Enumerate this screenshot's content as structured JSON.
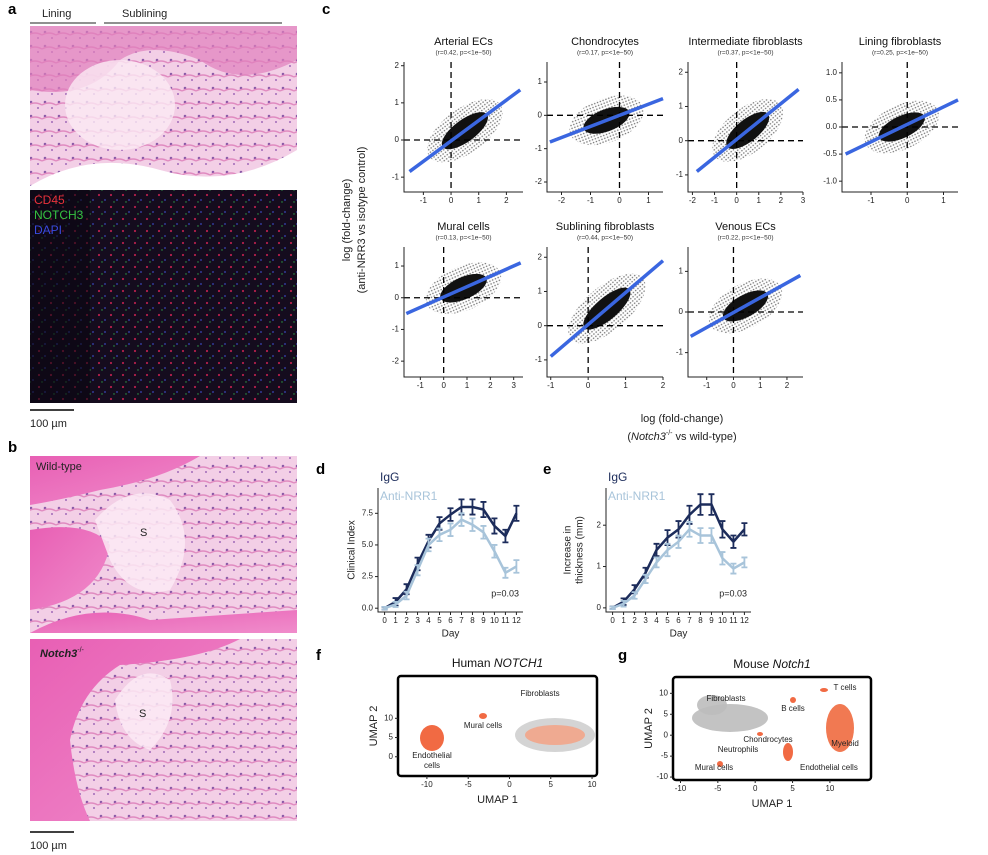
{
  "panels": {
    "a": {
      "label": "a",
      "lining": "Lining",
      "sublining": "Sublining",
      "stains": [
        "CD45",
        "NOTCH3",
        "DAPI"
      ],
      "scale": "100 µm"
    },
    "b": {
      "label": "b",
      "top": "Wild-type",
      "bottom_gene": "Notch3",
      "bottom_sup": "-/-",
      "s_top": "S",
      "s_bottom": "S",
      "scale": "100 µm"
    },
    "c": {
      "label": "c",
      "y_label": [
        "log (fold-change)",
        "(anti-NRR3 vs isotype control)"
      ],
      "x_label": "log (fold-change)",
      "x_label2": [
        "(",
        "Notch3",
        "-/-",
        " vs wild-type)"
      ]
    },
    "d": {
      "label": "d"
    },
    "e": {
      "label": "e"
    },
    "f": {
      "label": "f"
    },
    "g": {
      "label": "g"
    }
  },
  "chart_data": [
    {
      "type": "scatter",
      "title": "Arterial ECs",
      "subtitle": "(r=0.42, p=<1e−50)",
      "xlim": [
        -1.7,
        2.6
      ],
      "ylim": [
        -1.4,
        2.1
      ],
      "xticks": [
        -1,
        0,
        1,
        2
      ],
      "yticks": [
        -1,
        0,
        1,
        2
      ],
      "fit_x": [
        -1.5,
        2.5
      ],
      "fit_y": [
        -0.85,
        1.35
      ],
      "color": "#3a66e0"
    },
    {
      "type": "scatter",
      "title": "Chondrocytes",
      "subtitle": "(r=0.17, p=<1e−50)",
      "xlim": [
        -2.5,
        1.5
      ],
      "ylim": [
        -2.3,
        1.6
      ],
      "xticks": [
        -2,
        -1,
        0,
        1
      ],
      "yticks": [
        -2,
        -1,
        0,
        1
      ],
      "fit_x": [
        -2.4,
        1.5
      ],
      "fit_y": [
        -0.8,
        0.5
      ],
      "color": "#3a66e0"
    },
    {
      "type": "scatter",
      "title": "Intermediate fibroblasts",
      "subtitle": "(r=0.37, p=<1e−50)",
      "xlim": [
        -2.2,
        3
      ],
      "ylim": [
        -1.5,
        2.3
      ],
      "xticks": [
        -2,
        -1,
        0,
        1,
        2,
        3
      ],
      "yticks": [
        -1,
        0,
        1,
        2
      ],
      "fit_x": [
        -1.8,
        2.8
      ],
      "fit_y": [
        -0.9,
        1.5
      ],
      "color": "#3a66e0"
    },
    {
      "type": "scatter",
      "title": "Lining fibroblasts",
      "subtitle": "(r=0.25, p=<1e−50)",
      "xlim": [
        -1.8,
        1.4
      ],
      "ylim": [
        -1.2,
        1.2
      ],
      "xticks": [
        -1,
        0,
        1
      ],
      "yticks": [
        {
          "value": -1,
          "label": "-1.0"
        },
        {
          "value": -0.5,
          "label": "-0.5"
        },
        {
          "value": 0,
          "label": "0.0"
        },
        {
          "value": 0.5,
          "label": "0.5"
        },
        {
          "value": 1,
          "label": "1.0"
        }
      ],
      "fit_x": [
        -1.7,
        1.4
      ],
      "fit_y": [
        -0.5,
        0.5
      ],
      "color": "#3a66e0"
    },
    {
      "type": "scatter",
      "title": "Mural cells",
      "subtitle": "(r=0.13, p=<1e−50)",
      "xlim": [
        -1.7,
        3.4
      ],
      "ylim": [
        -2.5,
        1.6
      ],
      "xticks": [
        -1,
        0,
        1,
        2,
        3
      ],
      "yticks": [
        -2,
        -1,
        0,
        1
      ],
      "fit_x": [
        -1.6,
        3.3
      ],
      "fit_y": [
        -0.5,
        1.1
      ],
      "color": "#3a66e0"
    },
    {
      "type": "scatter",
      "title": "Sublining fibroblasts",
      "subtitle": "(r=0.44, p=<1e−50)",
      "xlim": [
        -1.1,
        2
      ],
      "ylim": [
        -1.5,
        2.3
      ],
      "xticks": [
        -1,
        0,
        1,
        2
      ],
      "yticks": [
        -1,
        0,
        1,
        2
      ],
      "fit_x": [
        -1,
        2
      ],
      "fit_y": [
        -0.9,
        1.9
      ],
      "color": "#3a66e0"
    },
    {
      "type": "scatter",
      "title": "Venous ECs",
      "subtitle": "(r=0.22, p=<1e−50)",
      "xlim": [
        -1.7,
        2.6
      ],
      "ylim": [
        -1.6,
        1.6
      ],
      "xticks": [
        -1,
        0,
        1,
        2
      ],
      "yticks": [
        -1,
        0,
        1
      ],
      "fit_x": [
        -1.6,
        2.5
      ],
      "fit_y": [
        -0.6,
        0.9
      ],
      "color": "#3a66e0"
    },
    {
      "type": "line",
      "y_label": [
        "Clinical Index"
      ],
      "x_label": "Day",
      "annotation": "p=0.03",
      "x": [
        0,
        1,
        2,
        3,
        4,
        5,
        6,
        7,
        8,
        9,
        10,
        11,
        12
      ],
      "xticks": [
        0,
        1,
        2,
        3,
        4,
        5,
        6,
        7,
        8,
        9,
        10,
        11,
        12
      ],
      "xlim": [
        -0.6,
        12.6
      ],
      "ylim": [
        -0.3,
        9.5
      ],
      "yticks": [
        {
          "value": 0,
          "label": "0.0"
        },
        {
          "value": 2.5,
          "label": "2.5"
        },
        {
          "value": 5,
          "label": "5.0"
        },
        {
          "value": 7.5,
          "label": "7.5"
        }
      ],
      "series": [
        {
          "name": "IgG",
          "color": "#1c2c5b",
          "values": [
            0,
            0.5,
            1.5,
            3.5,
            5.3,
            6.7,
            7.4,
            8.0,
            8.0,
            7.8,
            6.5,
            5.7,
            7.5
          ],
          "errors": [
            0.1,
            0.3,
            0.4,
            0.5,
            0.5,
            0.5,
            0.5,
            0.6,
            0.6,
            0.6,
            0.6,
            0.5,
            0.6
          ]
        },
        {
          "name": "Anti-NRR1",
          "color": "#a8c4da",
          "values": [
            0,
            0.3,
            1.0,
            3.0,
            5.0,
            5.8,
            6.2,
            7.0,
            6.6,
            6.0,
            4.5,
            2.8,
            3.3
          ],
          "errors": [
            0.1,
            0.2,
            0.3,
            0.4,
            0.5,
            0.5,
            0.5,
            0.5,
            0.5,
            0.5,
            0.5,
            0.4,
            0.5
          ]
        }
      ]
    },
    {
      "type": "line",
      "y_label": [
        "Increase in",
        "thickness (mm)"
      ],
      "x_label": "Day",
      "annotation": "p=0.03",
      "x": [
        0,
        1,
        2,
        3,
        4,
        5,
        6,
        7,
        8,
        9,
        10,
        11,
        12
      ],
      "xticks": [
        0,
        1,
        2,
        3,
        4,
        5,
        6,
        7,
        8,
        9,
        10,
        11,
        12
      ],
      "xlim": [
        -0.6,
        12.6
      ],
      "ylim": [
        -0.1,
        2.9
      ],
      "yticks": [
        0,
        1,
        2
      ],
      "series": [
        {
          "name": "IgG",
          "color": "#1c2c5b",
          "values": [
            0,
            0.15,
            0.45,
            0.85,
            1.4,
            1.7,
            1.9,
            2.25,
            2.5,
            2.5,
            1.9,
            1.6,
            1.9
          ],
          "errors": [
            0.03,
            0.08,
            0.1,
            0.12,
            0.15,
            0.18,
            0.2,
            0.22,
            0.25,
            0.25,
            0.2,
            0.15,
            0.15
          ]
        },
        {
          "name": "Anti-NRR1",
          "color": "#a8c4da",
          "values": [
            0,
            0.1,
            0.3,
            0.7,
            1.1,
            1.4,
            1.6,
            1.9,
            1.75,
            1.75,
            1.2,
            0.95,
            1.1
          ],
          "errors": [
            0.03,
            0.07,
            0.08,
            0.1,
            0.12,
            0.15,
            0.15,
            0.18,
            0.18,
            0.18,
            0.15,
            0.12,
            0.12
          ]
        }
      ]
    },
    {
      "type": "umap",
      "title": [
        "Human ",
        "NOTCH1"
      ],
      "x_label": "UMAP 1",
      "y_label": "UMAP 2",
      "xlim": [
        -13.5,
        10.6
      ],
      "ylim": [
        -5,
        21
      ],
      "xticks": [
        -10,
        -5,
        0,
        5,
        10
      ],
      "yticks": [
        0,
        5,
        10
      ],
      "clusters": [
        "Mural cells",
        "Fibroblasts",
        "Endothelial",
        "cells"
      ]
    },
    {
      "type": "umap",
      "title": [
        "Mouse ",
        "Notch1"
      ],
      "x_label": "UMAP 1",
      "y_label": "UMAP 2",
      "xlim": [
        -11,
        15.5
      ],
      "ylim": [
        -10.7,
        13.9
      ],
      "xticks": [
        -10,
        -5,
        0,
        5,
        10
      ],
      "yticks": [
        -10,
        -5,
        0,
        5,
        10
      ],
      "clusters": [
        "B cells",
        "T cells",
        "Fibroblasts",
        "Chondrocytes",
        "Myeloid",
        "Neutrophils",
        "Mural cells",
        "Endothelial cells"
      ]
    }
  ]
}
